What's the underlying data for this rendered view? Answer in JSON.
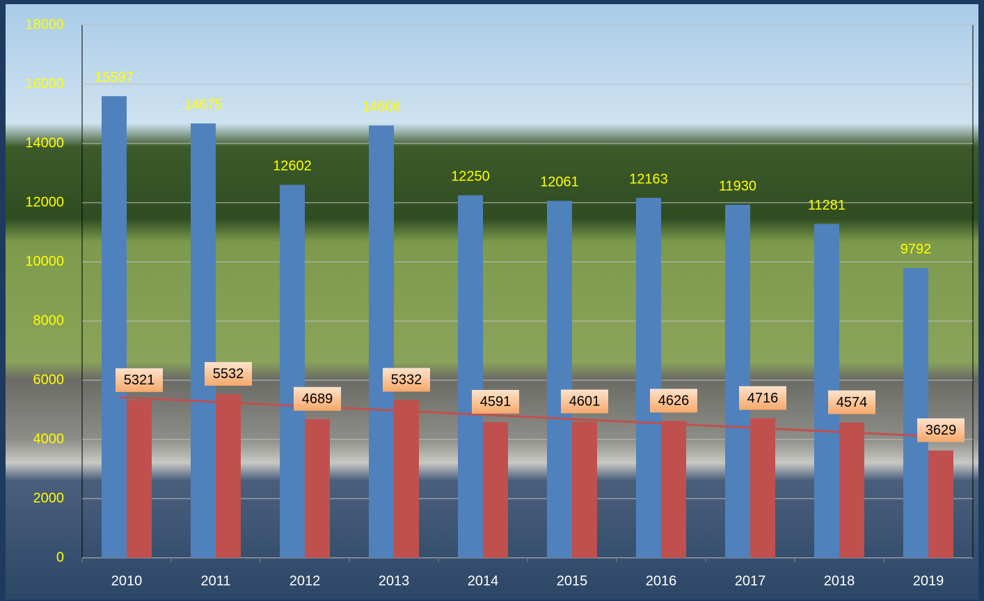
{
  "chart_data": {
    "type": "bar",
    "categories": [
      "2010",
      "2011",
      "2012",
      "2013",
      "2014",
      "2015",
      "2016",
      "2017",
      "2018",
      "2019"
    ],
    "series": [
      {
        "color": "#4f81bd",
        "values": [
          15597,
          14675,
          12602,
          14606,
          12250,
          12061,
          12163,
          11930,
          11281,
          9792
        ]
      },
      {
        "color": "#c0504d",
        "values": [
          5321,
          5532,
          4689,
          5332,
          4591,
          4601,
          4626,
          4716,
          4574,
          3629
        ],
        "trendline": true
      }
    ],
    "ylim": [
      0,
      18000
    ],
    "yticks": [
      0,
      2000,
      4000,
      6000,
      8000,
      10000,
      12000,
      14000,
      16000,
      18000
    ],
    "grid": true
  }
}
